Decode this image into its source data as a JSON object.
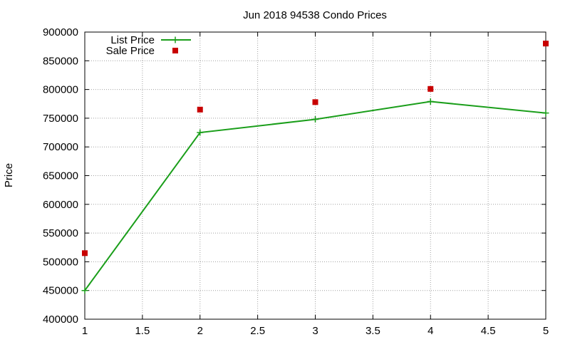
{
  "chart_data": {
    "type": "line",
    "title": "Jun 2018 94538 Condo Prices",
    "xlabel": "",
    "ylabel": "Price",
    "xlim": [
      1,
      5
    ],
    "ylim": [
      400000,
      900000
    ],
    "x_ticks": [
      "1",
      "1.5",
      "2",
      "2.5",
      "3",
      "3.5",
      "4",
      "4.5",
      "5"
    ],
    "y_ticks": [
      "400000",
      "450000",
      "500000",
      "550000",
      "600000",
      "650000",
      "700000",
      "750000",
      "800000",
      "850000",
      "900000"
    ],
    "grid": true,
    "legend_position": "top-left",
    "series": [
      {
        "name": "List Price",
        "style": "line-with-plus-markers",
        "color": "#1a9e1a",
        "x": [
          1,
          2,
          3,
          4,
          5
        ],
        "y": [
          450000,
          725000,
          748000,
          779000,
          759000
        ]
      },
      {
        "name": "Sale Price",
        "style": "square-markers",
        "color": "#c80000",
        "x": [
          1,
          2,
          3,
          4,
          5
        ],
        "y": [
          515000,
          765000,
          778000,
          801000,
          880000
        ]
      }
    ]
  }
}
